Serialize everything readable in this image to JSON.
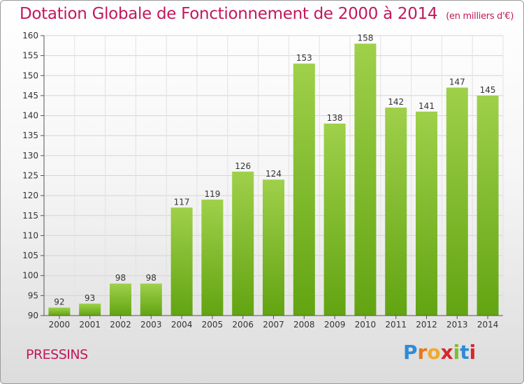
{
  "title": "Dotation Globale de Fonctionnement de 2000 à 2014",
  "unit_note": "(en milliers d'€)",
  "commune": "PRESSINS",
  "logo": {
    "text": "Proxiti",
    "colors": [
      "#2e8bd6",
      "#e8761c",
      "#f2a92a",
      "#d8262f",
      "#7cbf2a",
      "#2e8bd6",
      "#d8262f"
    ]
  },
  "colors": {
    "accent": "#c2185b",
    "bar_top": "#9fd04a",
    "bar_bottom": "#62a412"
  },
  "chart_data": {
    "type": "bar",
    "categories": [
      "2000",
      "2001",
      "2002",
      "2003",
      "2004",
      "2005",
      "2006",
      "2007",
      "2008",
      "2009",
      "2010",
      "2011",
      "2012",
      "2013",
      "2014"
    ],
    "values": [
      92,
      93,
      98,
      98,
      117,
      119,
      126,
      124,
      153,
      138,
      158,
      142,
      141,
      147,
      145
    ],
    "ylim": [
      90,
      160
    ],
    "yticks": [
      90,
      95,
      100,
      105,
      110,
      115,
      120,
      125,
      130,
      135,
      140,
      145,
      150,
      155,
      160
    ],
    "grid": true,
    "data_labels": true
  }
}
